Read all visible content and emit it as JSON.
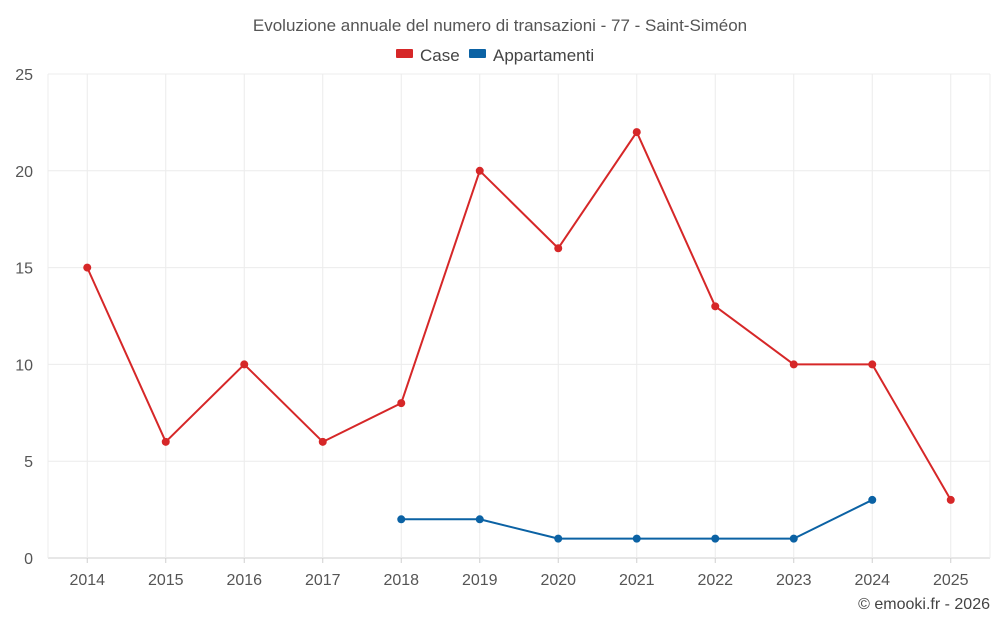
{
  "chart_data": {
    "type": "line",
    "title": "Evoluzione annuale del numero di transazioni - 77 - Saint-Siméon",
    "categories": [
      "2014",
      "2015",
      "2016",
      "2017",
      "2018",
      "2019",
      "2020",
      "2021",
      "2022",
      "2023",
      "2024",
      "2025"
    ],
    "yticks": [
      "0",
      "5",
      "10",
      "15",
      "20",
      "25"
    ],
    "ylim": [
      0,
      25
    ],
    "grid": true,
    "legend_position": "top-center",
    "xlabel": "",
    "ylabel": "",
    "series": [
      {
        "name": "Case",
        "color": "#d62728",
        "values": [
          15,
          6,
          10,
          6,
          8,
          20,
          16,
          22,
          13,
          10,
          10,
          3
        ]
      },
      {
        "name": "Appartamenti",
        "color": "#0b62a4",
        "values": [
          null,
          null,
          null,
          null,
          2,
          2,
          1,
          1,
          1,
          1,
          3,
          null
        ]
      }
    ]
  },
  "credit": "© emooki.fr - 2026"
}
